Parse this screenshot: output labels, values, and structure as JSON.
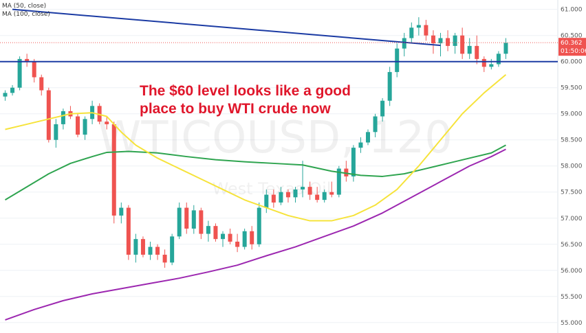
{
  "indicators": [
    {
      "label": "MA (50, close)",
      "color": "#f6e33b"
    },
    {
      "label": "MA (100, close)",
      "color": "#2ea44f"
    }
  ],
  "watermark": {
    "symbol": "WTICOUSD, 120",
    "name": "West Texas Oil"
  },
  "annotation": {
    "line1": "The $60 level looks like a good",
    "line2": "place to buy WTI crude now"
  },
  "price_tag": {
    "value": "60.362",
    "countdown": "01:50:06"
  },
  "colors": {
    "up": "#26a69a",
    "down": "#ef5350",
    "ma50": "#f6e33b",
    "ma100": "#2ea44f",
    "ma200": "#9c27b0",
    "support": "#1a3aa3",
    "trendline": "#1a3aa3",
    "tag": "#ef5350"
  },
  "chart_data": {
    "type": "candlestick",
    "title": "",
    "y_ticks": [
      "61.000",
      "60.500",
      "60.000",
      "59.500",
      "59.000",
      "58.500",
      "58.000",
      "57.500",
      "57.000",
      "56.500",
      "56.000",
      "55.500",
      "55.000"
    ],
    "ylim": [
      54.8,
      61.18
    ],
    "support_level": 60.0,
    "trendline": [
      [
        1,
        61.0
      ],
      [
        60,
        60.31
      ]
    ],
    "last_price": 60.362,
    "candles": [
      [
        59.33,
        59.45,
        59.25,
        59.4
      ],
      [
        59.4,
        59.55,
        59.35,
        59.5
      ],
      [
        59.5,
        60.1,
        59.45,
        60.05
      ],
      [
        60.05,
        60.15,
        59.9,
        60.0
      ],
      [
        60.0,
        60.05,
        59.6,
        59.7
      ],
      [
        59.7,
        59.75,
        59.35,
        59.45
      ],
      [
        59.45,
        59.5,
        58.45,
        58.5
      ],
      [
        58.5,
        58.9,
        58.35,
        58.8
      ],
      [
        58.8,
        59.1,
        58.7,
        59.05
      ],
      [
        59.05,
        59.15,
        58.9,
        58.95
      ],
      [
        58.95,
        59.0,
        58.55,
        58.6
      ],
      [
        58.6,
        58.95,
        58.5,
        58.9
      ],
      [
        58.9,
        59.25,
        58.8,
        59.15
      ],
      [
        59.15,
        59.2,
        58.8,
        58.85
      ],
      [
        58.85,
        58.95,
        58.7,
        58.8
      ],
      [
        58.8,
        58.85,
        56.9,
        57.05
      ],
      [
        57.05,
        57.3,
        56.9,
        57.2
      ],
      [
        57.2,
        57.25,
        56.2,
        56.3
      ],
      [
        56.3,
        56.7,
        56.15,
        56.6
      ],
      [
        56.6,
        56.65,
        56.25,
        56.3
      ],
      [
        56.3,
        56.55,
        56.2,
        56.45
      ],
      [
        56.45,
        56.5,
        56.2,
        56.3
      ],
      [
        56.3,
        56.4,
        56.05,
        56.15
      ],
      [
        56.15,
        56.7,
        56.1,
        56.65
      ],
      [
        56.65,
        57.3,
        56.6,
        57.2
      ],
      [
        57.2,
        57.3,
        56.7,
        56.8
      ],
      [
        56.8,
        57.25,
        56.7,
        57.15
      ],
      [
        57.15,
        57.2,
        56.6,
        56.7
      ],
      [
        56.7,
        56.95,
        56.55,
        56.85
      ],
      [
        56.85,
        56.9,
        56.55,
        56.6
      ],
      [
        56.6,
        56.75,
        56.45,
        56.7
      ],
      [
        56.7,
        56.8,
        56.5,
        56.55
      ],
      [
        56.55,
        56.7,
        56.35,
        56.45
      ],
      [
        56.45,
        56.8,
        56.4,
        56.75
      ],
      [
        56.75,
        56.85,
        56.4,
        56.5
      ],
      [
        56.5,
        57.3,
        56.45,
        57.2
      ],
      [
        57.2,
        57.55,
        57.1,
        57.45
      ],
      [
        57.45,
        57.55,
        57.2,
        57.3
      ],
      [
        57.3,
        57.6,
        57.25,
        57.5
      ],
      [
        57.5,
        57.55,
        57.3,
        57.4
      ],
      [
        57.4,
        57.6,
        57.3,
        57.55
      ],
      [
        57.55,
        58.1,
        57.4,
        57.6
      ],
      [
        57.6,
        57.7,
        57.35,
        57.45
      ],
      [
        57.45,
        57.6,
        57.3,
        57.35
      ],
      [
        57.35,
        57.55,
        57.3,
        57.5
      ],
      [
        57.5,
        57.7,
        57.4,
        57.45
      ],
      [
        57.45,
        58.0,
        57.4,
        57.95
      ],
      [
        57.95,
        58.1,
        57.7,
        57.8
      ],
      [
        57.8,
        58.4,
        57.7,
        58.35
      ],
      [
        58.35,
        58.55,
        58.25,
        58.45
      ],
      [
        58.45,
        58.7,
        58.4,
        58.65
      ],
      [
        58.65,
        59.0,
        58.55,
        58.95
      ],
      [
        58.95,
        59.3,
        58.85,
        59.25
      ],
      [
        59.25,
        59.9,
        59.15,
        59.8
      ],
      [
        59.8,
        60.35,
        59.7,
        60.25
      ],
      [
        60.25,
        60.55,
        60.1,
        60.45
      ],
      [
        60.45,
        60.75,
        60.35,
        60.65
      ],
      [
        60.65,
        60.85,
        60.5,
        60.7
      ],
      [
        60.7,
        60.8,
        60.4,
        60.5
      ],
      [
        60.5,
        60.6,
        60.15,
        60.35
      ],
      [
        60.35,
        60.55,
        60.1,
        60.45
      ],
      [
        60.45,
        60.6,
        60.2,
        60.3
      ],
      [
        60.3,
        60.55,
        60.15,
        60.5
      ],
      [
        60.5,
        60.65,
        60.05,
        60.15
      ],
      [
        60.15,
        60.45,
        60.05,
        60.3
      ],
      [
        60.3,
        60.5,
        59.95,
        60.05
      ],
      [
        60.05,
        60.1,
        59.8,
        59.9
      ],
      [
        59.9,
        60.05,
        59.85,
        59.95
      ],
      [
        59.95,
        60.2,
        59.9,
        60.15
      ],
      [
        60.15,
        60.45,
        60.05,
        60.36
      ]
    ],
    "ma50": [
      [
        0,
        58.7
      ],
      [
        3,
        58.8
      ],
      [
        6,
        58.9
      ],
      [
        9,
        59.0
      ],
      [
        12,
        59.02
      ],
      [
        14,
        58.95
      ],
      [
        16,
        58.65
      ],
      [
        18,
        58.4
      ],
      [
        21,
        58.15
      ],
      [
        24,
        57.95
      ],
      [
        27,
        57.75
      ],
      [
        30,
        57.55
      ],
      [
        33,
        57.35
      ],
      [
        36,
        57.2
      ],
      [
        39,
        57.05
      ],
      [
        42,
        56.95
      ],
      [
        45,
        56.95
      ],
      [
        48,
        57.05
      ],
      [
        51,
        57.25
      ],
      [
        54,
        57.55
      ],
      [
        57,
        58.0
      ],
      [
        60,
        58.5
      ],
      [
        63,
        59.0
      ],
      [
        66,
        59.4
      ],
      [
        69,
        59.75
      ]
    ],
    "ma100": [
      [
        0,
        57.35
      ],
      [
        3,
        57.6
      ],
      [
        6,
        57.85
      ],
      [
        9,
        58.05
      ],
      [
        12,
        58.18
      ],
      [
        14,
        58.26
      ],
      [
        17,
        58.28
      ],
      [
        21,
        58.25
      ],
      [
        25,
        58.18
      ],
      [
        29,
        58.12
      ],
      [
        33,
        58.08
      ],
      [
        37,
        58.05
      ],
      [
        41,
        58.02
      ],
      [
        45,
        57.9
      ],
      [
        49,
        57.82
      ],
      [
        52,
        57.8
      ],
      [
        55,
        57.85
      ],
      [
        58,
        57.95
      ],
      [
        61,
        58.05
      ],
      [
        64,
        58.15
      ],
      [
        67,
        58.25
      ],
      [
        69,
        58.4
      ]
    ],
    "ma200": [
      [
        0,
        55.05
      ],
      [
        4,
        55.25
      ],
      [
        8,
        55.42
      ],
      [
        12,
        55.55
      ],
      [
        16,
        55.65
      ],
      [
        20,
        55.75
      ],
      [
        24,
        55.85
      ],
      [
        28,
        55.97
      ],
      [
        32,
        56.1
      ],
      [
        36,
        56.28
      ],
      [
        40,
        56.45
      ],
      [
        44,
        56.65
      ],
      [
        48,
        56.85
      ],
      [
        52,
        57.1
      ],
      [
        56,
        57.4
      ],
      [
        60,
        57.7
      ],
      [
        64,
        58.0
      ],
      [
        67,
        58.18
      ],
      [
        69,
        58.32
      ]
    ]
  }
}
